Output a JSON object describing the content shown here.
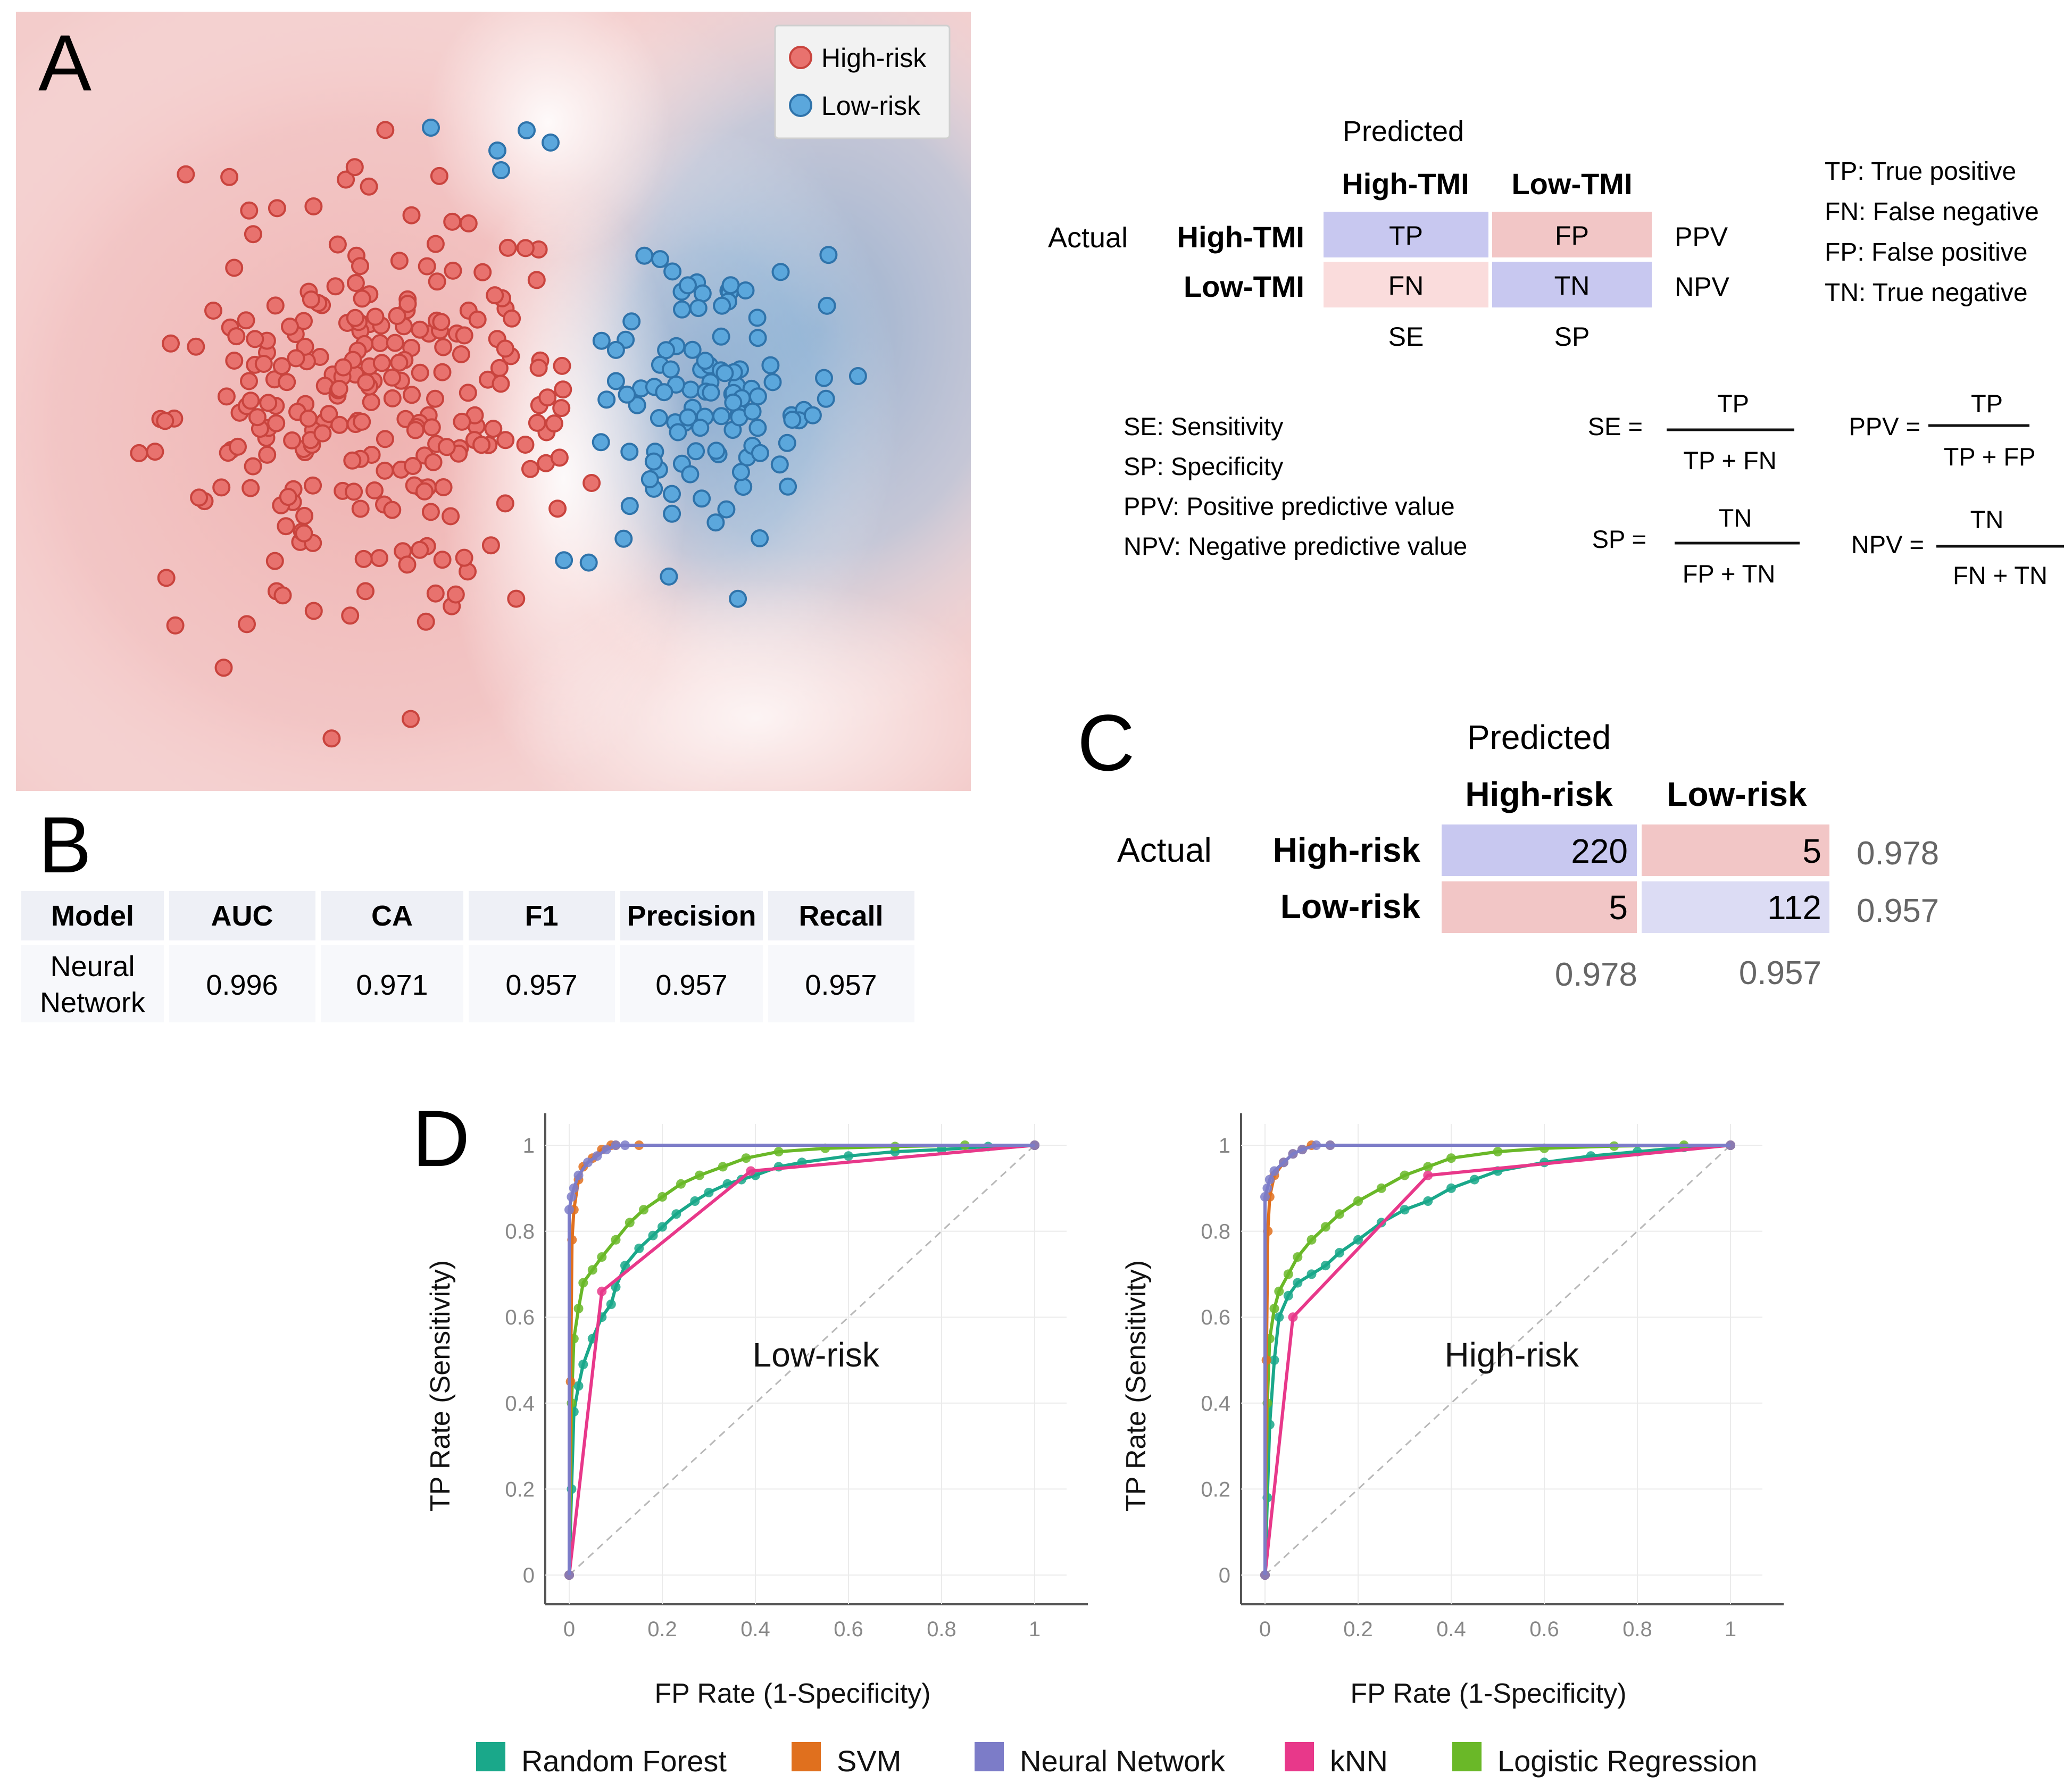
{
  "panels": {
    "a": "A",
    "b": "B",
    "c": "C",
    "d": "D"
  },
  "panel_a": {
    "legend": [
      {
        "label": "High-risk",
        "color": "#e8726e"
      },
      {
        "label": "Low-risk",
        "color": "#5ba7dc"
      }
    ],
    "confusion": {
      "predicted": "Predicted",
      "actual": "Actual",
      "col_headers": [
        "High-TMI",
        "Low-TMI"
      ],
      "row_headers": [
        "High-TMI",
        "Low-TMI"
      ],
      "cells": [
        "TP",
        "FP",
        "FN",
        "TN"
      ],
      "row_metrics": [
        "PPV",
        "NPV"
      ],
      "col_metrics": [
        "SE",
        "SP"
      ]
    },
    "abbrev": [
      "TP: True positive",
      "FN: False negative",
      "FP: False positive",
      "TN: True negative"
    ],
    "definitions": [
      "SE: Sensitivity",
      "SP: Specificity",
      "PPV: Positive predictive value",
      "NPV: Negative predictive value"
    ],
    "formulas": [
      {
        "lhs": "SE =",
        "num": "TP",
        "den": "TP + FN"
      },
      {
        "lhs": "PPV =",
        "num": "TP",
        "den": "TP + FP"
      },
      {
        "lhs": "SP =",
        "num": "TN",
        "den": "FP + TN"
      },
      {
        "lhs": "NPV =",
        "num": "TN",
        "den": "FN + TN"
      }
    ]
  },
  "panel_b": {
    "headers": [
      "Model",
      "AUC",
      "CA",
      "F1",
      "Precision",
      "Recall"
    ],
    "model_line1": "Neural",
    "model_line2": "Network",
    "values": [
      "0.996",
      "0.971",
      "0.957",
      "0.957",
      "0.957"
    ]
  },
  "panel_c": {
    "predicted": "Predicted",
    "actual": "Actual",
    "col_headers": [
      "High-risk",
      "Low-risk"
    ],
    "row_headers": [
      "High-risk",
      "Low-risk"
    ],
    "cells": [
      "220",
      "5",
      "5",
      "112"
    ],
    "row_metrics": [
      "0.978",
      "0.957"
    ],
    "col_metrics": [
      "0.978",
      "0.957"
    ]
  },
  "colors": {
    "blue_cell": "#c8c8f0",
    "pink_cell": "#f2c6c6",
    "pink_light": "#fadcdc",
    "blue_light": "#dcdcf4",
    "table_bg": "#eef0f6"
  },
  "chart_data": [
    {
      "type": "scatter",
      "title": "",
      "xlabel": "",
      "ylabel": "",
      "series": [
        {
          "name": "High-risk",
          "count": 260
        },
        {
          "name": "Low-risk",
          "count": 112
        }
      ]
    },
    {
      "type": "line",
      "title": "Low-risk",
      "xlabel": "FP Rate (1-Specificity)",
      "ylabel": "TP Rate (Sensitivity)",
      "xlim": [
        0,
        1
      ],
      "ylim": [
        0,
        1
      ],
      "xticks": [
        "0",
        "0.2",
        "0.4",
        "0.6",
        "0.8",
        "1"
      ],
      "yticks": [
        "0",
        "0.2",
        "0.4",
        "0.6",
        "0.8",
        "1"
      ],
      "series": [
        {
          "name": "Random Forest",
          "color": "#1aa88a",
          "x": [
            0,
            0.005,
            0.01,
            0.02,
            0.03,
            0.05,
            0.07,
            0.09,
            0.1,
            0.12,
            0.15,
            0.18,
            0.2,
            0.23,
            0.27,
            0.3,
            0.34,
            0.37,
            0.4,
            0.45,
            0.5,
            0.6,
            0.7,
            0.8,
            0.9,
            1
          ],
          "y": [
            0,
            0.2,
            0.38,
            0.44,
            0.49,
            0.55,
            0.6,
            0.63,
            0.67,
            0.72,
            0.76,
            0.79,
            0.81,
            0.84,
            0.87,
            0.89,
            0.91,
            0.92,
            0.93,
            0.95,
            0.96,
            0.975,
            0.985,
            0.99,
            0.997,
            1
          ]
        },
        {
          "name": "SVM",
          "color": "#e0701e",
          "x": [
            0,
            0.003,
            0.006,
            0.01,
            0.02,
            0.03,
            0.05,
            0.07,
            0.09,
            0.1,
            0.15,
            1
          ],
          "y": [
            0,
            0.45,
            0.78,
            0.85,
            0.92,
            0.95,
            0.97,
            0.99,
            1,
            1,
            1,
            1
          ]
        },
        {
          "name": "Neural Network",
          "color": "#7c7cc8",
          "x": [
            0,
            0,
            0.005,
            0.01,
            0.02,
            0.04,
            0.06,
            0.08,
            0.1,
            0.12,
            1
          ],
          "y": [
            0,
            0.85,
            0.88,
            0.9,
            0.93,
            0.96,
            0.975,
            0.99,
            1,
            1,
            1
          ]
        },
        {
          "name": "kNN",
          "color": "#e8388a",
          "x": [
            0,
            0.07,
            0.39,
            1
          ],
          "y": [
            0,
            0.66,
            0.94,
            1
          ]
        },
        {
          "name": "Logistic Regression",
          "color": "#6ab828",
          "x": [
            0,
            0.005,
            0.01,
            0.02,
            0.03,
            0.05,
            0.07,
            0.1,
            0.13,
            0.16,
            0.2,
            0.24,
            0.28,
            0.33,
            0.38,
            0.45,
            0.55,
            0.7,
            0.85,
            1
          ],
          "y": [
            0,
            0.4,
            0.55,
            0.62,
            0.68,
            0.71,
            0.74,
            0.78,
            0.82,
            0.85,
            0.88,
            0.91,
            0.93,
            0.95,
            0.97,
            0.985,
            0.993,
            0.997,
            1,
            1
          ]
        }
      ]
    },
    {
      "type": "line",
      "title": "High-risk",
      "xlabel": "FP Rate (1-Specificity)",
      "ylabel": "TP Rate (Sensitivity)",
      "xlim": [
        0,
        1
      ],
      "ylim": [
        0,
        1
      ],
      "xticks": [
        "0",
        "0.2",
        "0.4",
        "0.6",
        "0.8",
        "1"
      ],
      "yticks": [
        "0",
        "0.2",
        "0.4",
        "0.6",
        "0.8",
        "1"
      ],
      "series": [
        {
          "name": "Random Forest",
          "color": "#1aa88a",
          "x": [
            0,
            0.005,
            0.01,
            0.02,
            0.03,
            0.05,
            0.07,
            0.1,
            0.13,
            0.16,
            0.2,
            0.25,
            0.3,
            0.35,
            0.4,
            0.45,
            0.5,
            0.6,
            0.7,
            0.8,
            0.9,
            1
          ],
          "y": [
            0,
            0.18,
            0.35,
            0.5,
            0.6,
            0.65,
            0.68,
            0.7,
            0.72,
            0.75,
            0.78,
            0.82,
            0.85,
            0.87,
            0.9,
            0.92,
            0.94,
            0.96,
            0.975,
            0.985,
            0.995,
            1
          ]
        },
        {
          "name": "SVM",
          "color": "#e0701e",
          "x": [
            0,
            0.003,
            0.006,
            0.01,
            0.02,
            0.04,
            0.06,
            0.08,
            0.1,
            0.14,
            1
          ],
          "y": [
            0,
            0.5,
            0.8,
            0.88,
            0.93,
            0.96,
            0.98,
            0.99,
            1,
            1,
            1
          ]
        },
        {
          "name": "Neural Network",
          "color": "#7c7cc8",
          "x": [
            0,
            0,
            0.005,
            0.01,
            0.02,
            0.04,
            0.06,
            0.08,
            0.11,
            0.14,
            1
          ],
          "y": [
            0,
            0.88,
            0.9,
            0.92,
            0.94,
            0.96,
            0.98,
            0.99,
            1,
            1,
            1
          ]
        },
        {
          "name": "kNN",
          "color": "#e8388a",
          "x": [
            0,
            0.06,
            0.35,
            1
          ],
          "y": [
            0,
            0.6,
            0.93,
            1
          ]
        },
        {
          "name": "Logistic Regression",
          "color": "#6ab828",
          "x": [
            0,
            0.005,
            0.01,
            0.02,
            0.03,
            0.05,
            0.07,
            0.1,
            0.13,
            0.16,
            0.2,
            0.25,
            0.3,
            0.35,
            0.4,
            0.5,
            0.6,
            0.75,
            0.9,
            1
          ],
          "y": [
            0,
            0.4,
            0.55,
            0.62,
            0.66,
            0.7,
            0.74,
            0.78,
            0.81,
            0.84,
            0.87,
            0.9,
            0.93,
            0.95,
            0.97,
            0.985,
            0.993,
            0.998,
            1,
            1
          ]
        }
      ]
    }
  ],
  "legend_d": [
    {
      "label": "Random Forest",
      "color": "#1aa88a"
    },
    {
      "label": "SVM",
      "color": "#e0701e"
    },
    {
      "label": "Neural Network",
      "color": "#7c7cc8"
    },
    {
      "label": "kNN",
      "color": "#e8388a"
    },
    {
      "label": "Logistic Regression",
      "color": "#6ab828"
    }
  ]
}
